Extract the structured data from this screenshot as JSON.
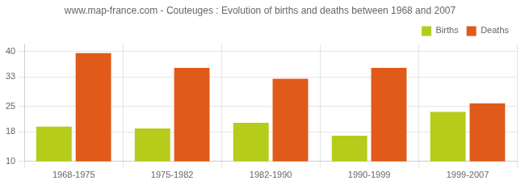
{
  "chart_data": {
    "type": "bar",
    "title": "www.map-france.com - Couteuges : Evolution of births and deaths between 1968 and 2007",
    "categories": [
      "1968-1975",
      "1975-1982",
      "1982-1990",
      "1990-1999",
      "1999-2007"
    ],
    "series": [
      {
        "name": "Births",
        "color": "#b5cc1b",
        "values": [
          19.5,
          19.0,
          20.5,
          17.0,
          23.5
        ]
      },
      {
        "name": "Deaths",
        "color": "#e05a1a",
        "values": [
          39.5,
          35.5,
          32.5,
          35.5,
          25.8
        ]
      }
    ],
    "ylim": [
      10,
      42
    ],
    "yticks": [
      10,
      18,
      25,
      33,
      40
    ],
    "grid": true,
    "legend": "upper right"
  }
}
